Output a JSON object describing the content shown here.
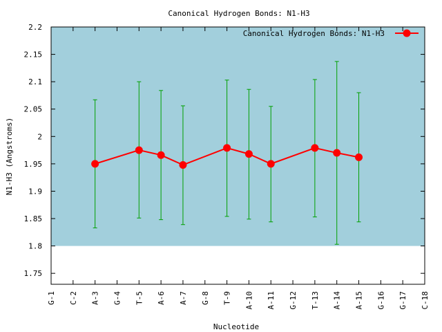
{
  "chart_data": {
    "type": "line",
    "title": "Canonical Hydrogen Bonds: N1-H3",
    "xlabel": "Nucleotide",
    "ylabel": "N1-H3 (Angstroms)",
    "ylim": [
      1.73,
      2.2
    ],
    "yticks": [
      "1.75",
      "1.8",
      "1.85",
      "1.9",
      "1.95",
      "2",
      "2.05",
      "2.1",
      "2.15",
      "2.2"
    ],
    "categories": [
      "G-1",
      "C-2",
      "A-3",
      "G-4",
      "T-5",
      "A-6",
      "A-7",
      "G-8",
      "T-9",
      "A-10",
      "A-11",
      "G-12",
      "T-13",
      "A-14",
      "A-15",
      "G-16",
      "G-17",
      "C-18"
    ],
    "shaded_band": [
      1.8,
      2.2
    ],
    "legend": {
      "position": "top-right",
      "label": "Canonical Hydrogen Bonds: N1-H3"
    },
    "series": [
      {
        "name": "Canonical Hydrogen Bonds: N1-H3",
        "color": "#ff0000",
        "errorbar_color": "#00a000",
        "points": [
          {
            "x": "A-3",
            "y": 1.95,
            "low": 1.833,
            "high": 2.067
          },
          {
            "x": "T-5",
            "y": 1.975,
            "low": 1.851,
            "high": 2.1
          },
          {
            "x": "A-6",
            "y": 1.966,
            "low": 1.848,
            "high": 2.084
          },
          {
            "x": "A-7",
            "y": 1.948,
            "low": 1.839,
            "high": 2.056
          },
          {
            "x": "T-9",
            "y": 1.979,
            "low": 1.854,
            "high": 2.103
          },
          {
            "x": "A-10",
            "y": 1.968,
            "low": 1.849,
            "high": 2.086
          },
          {
            "x": "A-11",
            "y": 1.95,
            "low": 1.844,
            "high": 2.055
          },
          {
            "x": "T-13",
            "y": 1.979,
            "low": 1.853,
            "high": 2.104
          },
          {
            "x": "A-14",
            "y": 1.97,
            "low": 1.803,
            "high": 2.137
          },
          {
            "x": "A-15",
            "y": 1.962,
            "low": 1.844,
            "high": 2.08
          }
        ]
      }
    ],
    "colors": {
      "band": "#a2cfdc",
      "axis": "#000000"
    }
  }
}
